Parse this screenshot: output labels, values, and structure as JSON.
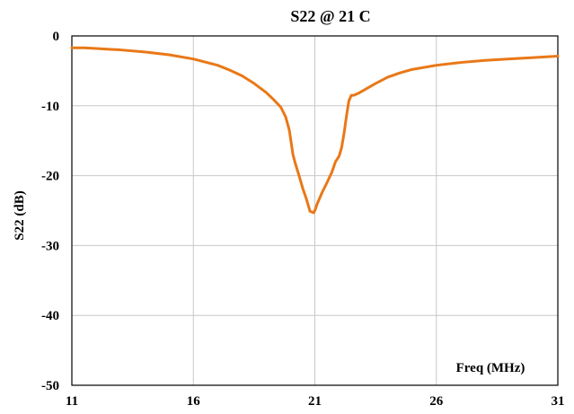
{
  "chart_data": {
    "type": "line",
    "title": "S22 @ 21 C",
    "xlabel": "Freq (MHz)",
    "ylabel": "S22 (dB)",
    "xlim": [
      11,
      31
    ],
    "ylim": [
      -50,
      0
    ],
    "xticks": [
      11,
      16,
      21,
      26,
      31
    ],
    "yticks": [
      0,
      -10,
      -20,
      -30,
      -40,
      -50
    ],
    "grid": true,
    "line_color": "#e97817",
    "grid_color": "#c8c8c8",
    "series": [
      {
        "x": [
          11.0,
          11.5,
          12.0,
          13.0,
          14.0,
          15.0,
          16.0,
          17.0,
          17.5,
          18.0,
          18.5,
          19.0,
          19.3,
          19.6,
          19.8,
          19.95,
          20.1,
          20.2,
          20.35,
          20.5,
          20.65,
          20.8,
          20.95,
          21.0,
          21.1,
          21.3,
          21.5,
          21.7,
          21.85,
          22.0,
          22.1,
          22.2,
          22.3,
          22.4,
          22.5,
          22.6,
          22.8,
          23.0,
          23.5,
          24.0,
          24.5,
          25.0,
          26.0,
          27.0,
          28.0,
          29.0,
          30.0,
          31.0
        ],
        "y": [
          -1.7,
          -1.7,
          -1.8,
          -2.0,
          -2.3,
          -2.7,
          -3.3,
          -4.2,
          -4.9,
          -5.7,
          -6.8,
          -8.1,
          -9.1,
          -10.2,
          -11.6,
          -13.5,
          -17.0,
          -18.3,
          -20.0,
          -21.8,
          -23.3,
          -25.1,
          -25.3,
          -25.0,
          -24.0,
          -22.4,
          -21.0,
          -19.5,
          -18.0,
          -17.2,
          -16.0,
          -14.0,
          -11.5,
          -9.3,
          -8.5,
          -8.5,
          -8.2,
          -7.8,
          -6.8,
          -5.9,
          -5.3,
          -4.8,
          -4.2,
          -3.8,
          -3.5,
          -3.3,
          -3.1,
          -2.9
        ]
      }
    ]
  }
}
